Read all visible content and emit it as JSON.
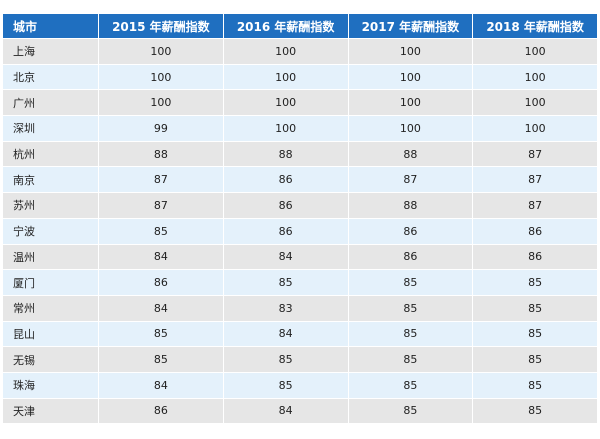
{
  "table": {
    "header": [
      "城市",
      "2015 年薪酬指数",
      "2016 年薪酬指数",
      "2017 年薪酬指数",
      "2018 年薪酬指数"
    ],
    "rows": [
      [
        "上海",
        100,
        100,
        100,
        100
      ],
      [
        "北京",
        100,
        100,
        100,
        100
      ],
      [
        "广州",
        100,
        100,
        100,
        100
      ],
      [
        "深圳",
        99,
        100,
        100,
        100
      ],
      [
        "杭州",
        88,
        88,
        88,
        87
      ],
      [
        "南京",
        87,
        86,
        87,
        87
      ],
      [
        "苏州",
        87,
        86,
        88,
        87
      ],
      [
        "宁波",
        85,
        86,
        86,
        86
      ],
      [
        "温州",
        84,
        84,
        86,
        86
      ],
      [
        "厦门",
        86,
        85,
        85,
        85
      ],
      [
        "常州",
        84,
        83,
        85,
        85
      ],
      [
        "昆山",
        85,
        84,
        85,
        85
      ],
      [
        "无锡",
        85,
        85,
        85,
        85
      ],
      [
        "珠海",
        84,
        85,
        85,
        85
      ],
      [
        "天津",
        86,
        84,
        85,
        85
      ]
    ]
  }
}
